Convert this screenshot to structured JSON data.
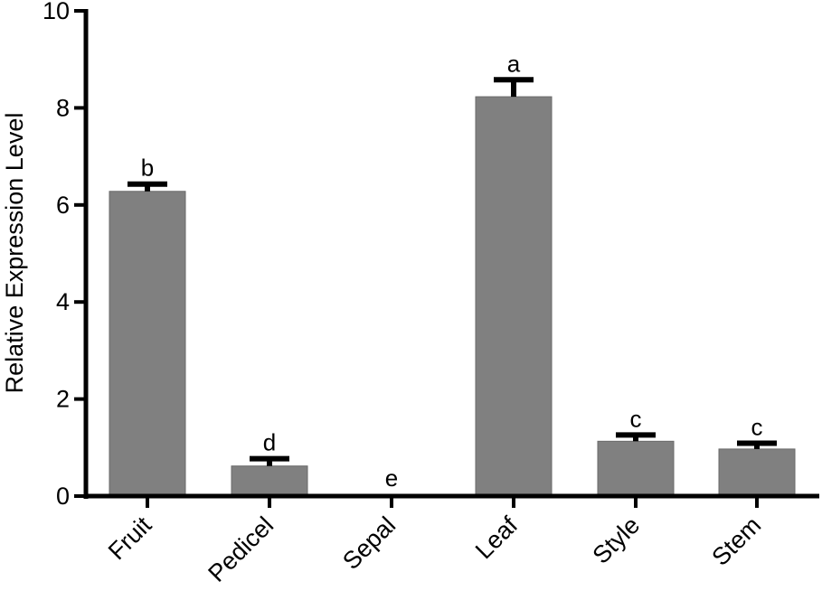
{
  "chart_data": {
    "type": "bar",
    "title": "",
    "xlabel": "",
    "ylabel": "Relative Expression Level",
    "ylim": [
      0,
      10
    ],
    "yticks": [
      0,
      2,
      4,
      6,
      8,
      10
    ],
    "ytick_labels": [
      "0",
      "2",
      "4",
      "6",
      "8",
      "10"
    ],
    "grid": false,
    "legend": "none",
    "categories": [
      "Fruit",
      "Pedicel",
      "Sepal",
      "Leaf",
      "Style",
      "Stem"
    ],
    "values": [
      6.28,
      0.62,
      0.0,
      8.23,
      1.13,
      0.97
    ],
    "errors": [
      0.15,
      0.15,
      0.0,
      0.35,
      0.13,
      0.12
    ],
    "significance": [
      "b",
      "d",
      "e",
      "a",
      "c",
      "c"
    ],
    "bar_color": "#808080",
    "axis_color": "#000000"
  }
}
